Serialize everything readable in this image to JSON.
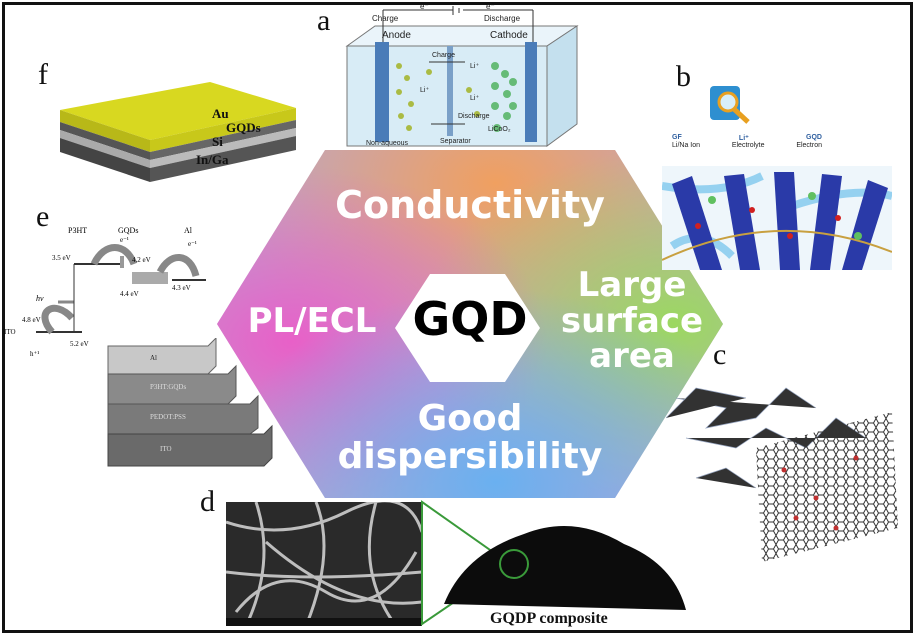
{
  "center": {
    "label": "GQD",
    "top": "Conductivity",
    "left": "PL/ECL",
    "right": [
      "Large",
      "surface",
      "area"
    ],
    "bottom": [
      "Good",
      "dispersibility"
    ]
  },
  "panels": {
    "a": {
      "letter": "a",
      "charge": "Charge",
      "discharge": "Discharge",
      "electron_left": "e⁻",
      "electron_right": "e⁻",
      "anode": "Anode",
      "cathode": "Cathode",
      "inner_charge": "Charge",
      "inner_discharge": "Discharge",
      "li_1": "Li⁺",
      "li_2": "Li⁺",
      "li_3": "Li⁺",
      "cathode_material": "LiCoO₂",
      "electrolyte": "Non-aqueous",
      "separator": "Separator"
    },
    "b": {
      "letter": "b",
      "legend": [
        "GF",
        "Li⁺",
        "GQD"
      ],
      "legend_sub": [
        "Li/Na Ion",
        "Electrolyte",
        "Electron"
      ]
    },
    "c": {
      "letter": "c"
    },
    "d": {
      "letter": "d",
      "caption": "GQDP composite"
    },
    "e": {
      "letter": "e",
      "p3ht": "P3HT",
      "gqds": "GQDs",
      "al": "Al",
      "e1": "e⁻¹",
      "e2": "e⁻¹",
      "v35": "3.5 eV",
      "v42": "4.2 eV",
      "v44": "4.4 eV",
      "v43": "4.3 eV",
      "hv": "hν",
      "v48": "4.8 eV",
      "ito": "ITO",
      "v52": "5.2 eV",
      "h": "h⁺¹",
      "stack": [
        "Al",
        "P3HT:GQDs",
        "PEDOT:PSS",
        "ITO"
      ]
    },
    "f": {
      "letter": "f",
      "layers": [
        "Au",
        "GQDs",
        "Si",
        "In/Ga"
      ]
    }
  },
  "colors": {
    "frame": "#111111",
    "hex_center_text": "#000000",
    "hex_word": "#ffffff"
  }
}
